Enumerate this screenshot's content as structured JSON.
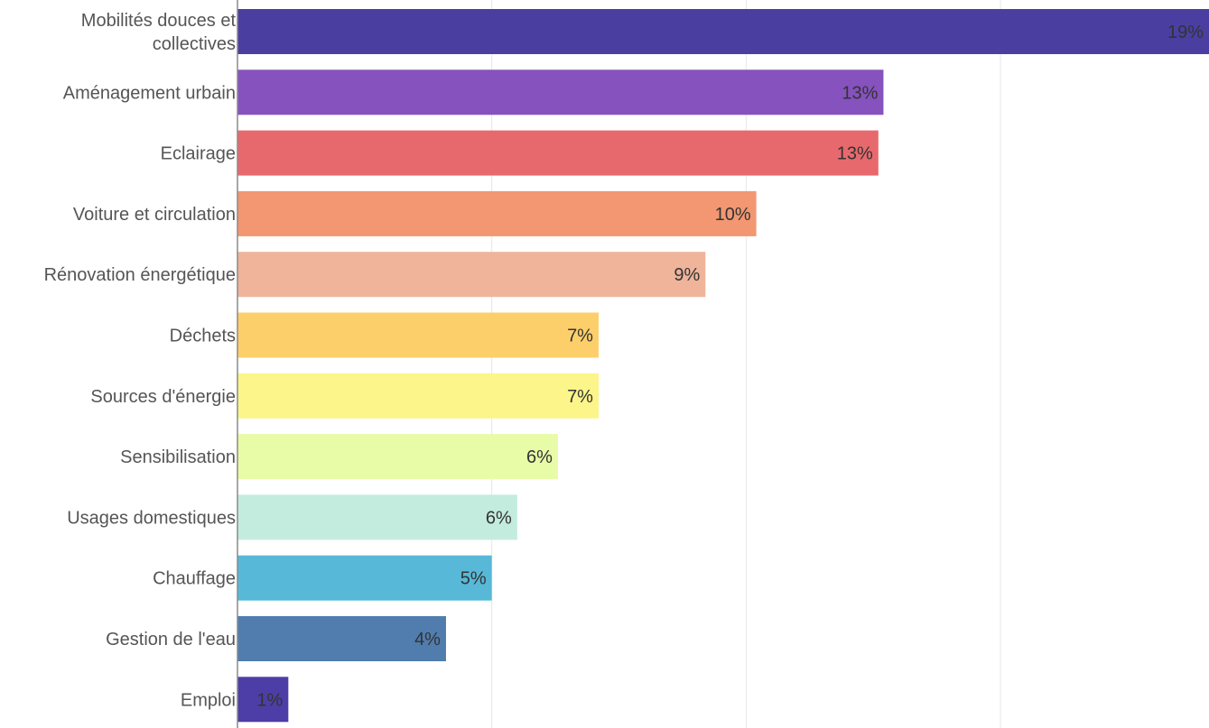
{
  "chart_data": {
    "type": "bar",
    "orientation": "horizontal",
    "categories": [
      [
        "Mobilités douces et",
        "collectives"
      ],
      [
        "Aménagement urbain"
      ],
      [
        "Eclairage"
      ],
      [
        "Voiture et circulation"
      ],
      [
        "Rénovation énergétique"
      ],
      [
        "Déchets"
      ],
      [
        "Sources d'énergie"
      ],
      [
        "Sensibilisation"
      ],
      [
        "Usages domestiques"
      ],
      [
        "Chauffage"
      ],
      [
        "Gestion de l'eau"
      ],
      [
        "Emploi"
      ]
    ],
    "values": [
      19.1,
      12.7,
      12.6,
      10.2,
      9.2,
      7.1,
      7.1,
      6.3,
      5.5,
      5.0,
      4.1,
      1.0
    ],
    "value_labels": [
      "19%",
      "13%",
      "13%",
      "10%",
      "9%",
      "7%",
      "7%",
      "6%",
      "6%",
      "5%",
      "4%",
      "1%"
    ],
    "colors": [
      "#4a3fa1",
      "#8652bd",
      "#e8696d",
      "#f29771",
      "#efb49a",
      "#fdcf6a",
      "#fcf58a",
      "#e8fba7",
      "#c3ecde",
      "#57b8d8",
      "#507dae",
      "#4c3ea6"
    ],
    "xlim": [
      0,
      19.1
    ],
    "gridlines": [
      0,
      5,
      10,
      15
    ],
    "grid": true,
    "title": "",
    "xlabel": "",
    "ylabel": ""
  }
}
